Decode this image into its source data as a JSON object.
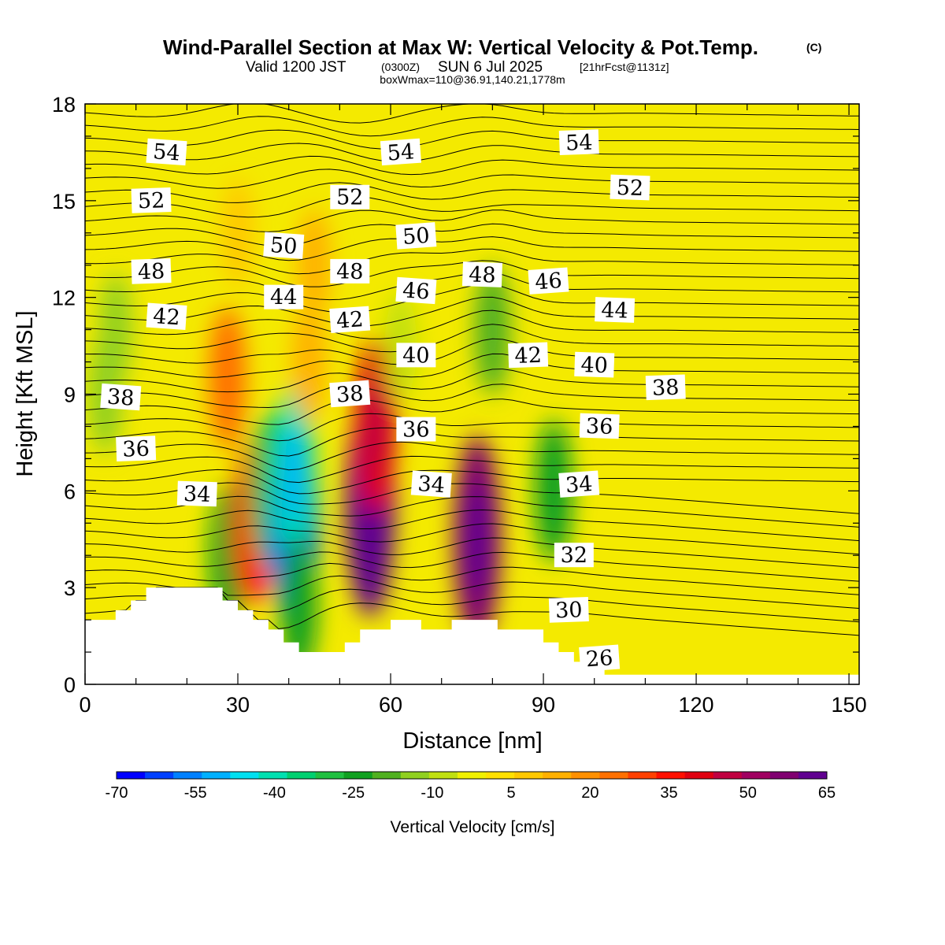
{
  "figure": {
    "title": "Wind-Parallel Section at Max W: Vertical Velocity & Pot.Temp.",
    "title_note": "(C)",
    "subtitle_valid": "Valid 1200 JST",
    "subtitle_utc": "(0300Z)",
    "subtitle_date": "SUN 6 Jul 2025",
    "subtitle_fcst": "[21hrFcst@1131z]",
    "caption": "boxWmax=110@36.91,140.21,1778m"
  },
  "chart_data": {
    "type": "heatmap",
    "title": "Wind-Parallel Section at Max W: Vertical Velocity & Pot.Temp.",
    "xlabel": "Distance [nm]",
    "ylabel": "Height [Kft MSL]",
    "xlim": [
      0,
      152
    ],
    "ylim": [
      0,
      18
    ],
    "x_ticks": [
      0,
      30,
      60,
      90,
      120,
      150
    ],
    "y_ticks": [
      0,
      3,
      6,
      9,
      12,
      15,
      18
    ],
    "grid": false,
    "colorbar": {
      "title": "Vertical Velocity [cm/s]",
      "tick_values": [
        -70,
        -55,
        -40,
        -25,
        -10,
        5,
        20,
        35,
        50,
        65
      ],
      "colors": [
        "#0000ff",
        "#0040ff",
        "#0080ff",
        "#00b0ff",
        "#00e0f0",
        "#00e0b0",
        "#00d070",
        "#20c040",
        "#10a020",
        "#50b020",
        "#90d020",
        "#c0e010",
        "#f0f000",
        "#ffe000",
        "#ffc800",
        "#ffb000",
        "#ff9000",
        "#ff7000",
        "#ff4000",
        "#ff1000",
        "#e00010",
        "#c00040",
        "#a00060",
        "#800070",
        "#600090"
      ]
    },
    "velocity_cells": [
      {
        "x": 4,
        "y": 9.0,
        "value": -15
      },
      {
        "x": 6,
        "y": 11.0,
        "value": -12
      },
      {
        "x": 28,
        "y": 4.0,
        "value": -25
      },
      {
        "x": 28,
        "y": 9.5,
        "value": 25
      },
      {
        "x": 33,
        "y": 5.0,
        "value": 35
      },
      {
        "x": 36,
        "y": 6.0,
        "value": -30
      },
      {
        "x": 41,
        "y": 5.0,
        "value": -60
      },
      {
        "x": 41,
        "y": 6.5,
        "value": -40
      },
      {
        "x": 42,
        "y": 2.5,
        "value": -25
      },
      {
        "x": 44,
        "y": 10.0,
        "value": 15
      },
      {
        "x": 56,
        "y": 5.5,
        "value": 60
      },
      {
        "x": 57,
        "y": 8.0,
        "value": 40
      },
      {
        "x": 62,
        "y": 10.5,
        "value": -10
      },
      {
        "x": 77,
        "y": 4.5,
        "value": 55
      },
      {
        "x": 80,
        "y": 11.0,
        "value": -20
      },
      {
        "x": 92,
        "y": 6.0,
        "value": -25
      },
      {
        "x": 30,
        "y": 14.0,
        "value": 10
      },
      {
        "x": 45,
        "y": 13.0,
        "value": 12
      }
    ],
    "terrain": {
      "x": [
        0,
        3,
        6,
        9,
        12,
        15,
        18,
        21,
        24,
        27,
        30,
        33,
        36,
        39,
        42,
        45,
        48,
        51,
        54,
        57,
        60,
        63,
        66,
        69,
        72,
        75,
        78,
        81,
        84,
        87,
        90,
        93,
        96,
        99,
        102,
        152
      ],
      "height": [
        2.0,
        2.0,
        2.3,
        2.6,
        3.0,
        3.0,
        3.0,
        3.0,
        3.0,
        2.6,
        2.3,
        2.0,
        1.7,
        1.3,
        1.0,
        1.0,
        1.0,
        1.3,
        1.7,
        1.7,
        2.0,
        2.0,
        1.7,
        1.7,
        2.0,
        2.0,
        2.0,
        1.7,
        1.7,
        1.7,
        1.3,
        1.0,
        0.7,
        0.5,
        0.3,
        0.3
      ]
    },
    "theta_contours": [
      {
        "value": 26,
        "label": "26",
        "label_x": 101,
        "label_y": 0.8
      },
      {
        "value": 30,
        "label": "30",
        "label_x": 95,
        "label_y": 2.3
      },
      {
        "value": 32,
        "label": "32",
        "label_x": 96,
        "label_y": 4.0
      },
      {
        "value": 34,
        "label": "34",
        "label_x": 22,
        "label_y": 5.9
      },
      {
        "value": 34,
        "label": "34",
        "label_x": 68,
        "label_y": 6.2
      },
      {
        "value": 34,
        "label": "34",
        "label_x": 97,
        "label_y": 6.2
      },
      {
        "value": 36,
        "label": "36",
        "label_x": 10,
        "label_y": 7.3
      },
      {
        "value": 36,
        "label": "36",
        "label_x": 65,
        "label_y": 7.9
      },
      {
        "value": 36,
        "label": "36",
        "label_x": 101,
        "label_y": 8.0
      },
      {
        "value": 38,
        "label": "38",
        "label_x": 7,
        "label_y": 8.9
      },
      {
        "value": 38,
        "label": "38",
        "label_x": 52,
        "label_y": 9.0
      },
      {
        "value": 38,
        "label": "38",
        "label_x": 114,
        "label_y": 9.2
      },
      {
        "value": 40,
        "label": "40",
        "label_x": 65,
        "label_y": 10.2
      },
      {
        "value": 40,
        "label": "40",
        "label_x": 100,
        "label_y": 9.9
      },
      {
        "value": 42,
        "label": "42",
        "label_x": 16,
        "label_y": 11.4
      },
      {
        "value": 42,
        "label": "42",
        "label_x": 52,
        "label_y": 11.3
      },
      {
        "value": 42,
        "label": "42",
        "label_x": 87,
        "label_y": 10.2
      },
      {
        "value": 44,
        "label": "44",
        "label_x": 39,
        "label_y": 12.0
      },
      {
        "value": 44,
        "label": "44",
        "label_x": 104,
        "label_y": 11.6
      },
      {
        "value": 46,
        "label": "46",
        "label_x": 65,
        "label_y": 12.2
      },
      {
        "value": 46,
        "label": "46",
        "label_x": 91,
        "label_y": 12.5
      },
      {
        "value": 48,
        "label": "48",
        "label_x": 13,
        "label_y": 12.8
      },
      {
        "value": 48,
        "label": "48",
        "label_x": 52,
        "label_y": 12.8
      },
      {
        "value": 48,
        "label": "48",
        "label_x": 78,
        "label_y": 12.7
      },
      {
        "value": 50,
        "label": "50",
        "label_x": 39,
        "label_y": 13.6
      },
      {
        "value": 50,
        "label": "50",
        "label_x": 65,
        "label_y": 13.9
      },
      {
        "value": 52,
        "label": "52",
        "label_x": 13,
        "label_y": 15.0
      },
      {
        "value": 52,
        "label": "52",
        "label_x": 52,
        "label_y": 15.1
      },
      {
        "value": 52,
        "label": "52",
        "label_x": 107,
        "label_y": 15.4
      },
      {
        "value": 54,
        "label": "54",
        "label_x": 16,
        "label_y": 16.5
      },
      {
        "value": 54,
        "label": "54",
        "label_x": 62,
        "label_y": 16.5
      },
      {
        "value": 54,
        "label": "54",
        "label_x": 97,
        "label_y": 16.8
      }
    ]
  }
}
